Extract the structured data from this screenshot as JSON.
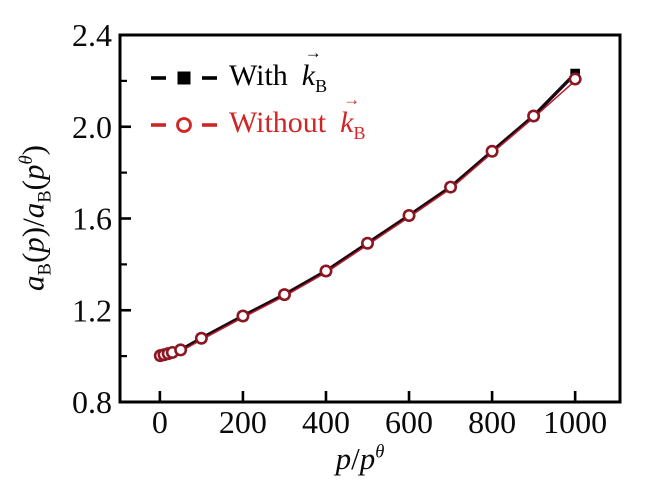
{
  "figure": {
    "background": "#ffffff"
  },
  "x_title": {
    "p1": "p",
    "slash": "/",
    "p2": "p",
    "sup": "θ"
  },
  "y_title": {
    "a1": "a",
    "sub1": "B",
    "seg1": "(",
    "p1": "p",
    "seg2": ")/",
    "a2": "a",
    "sub2": "B",
    "seg3": "(",
    "p2": "p",
    "sup": "θ",
    "seg4": ")"
  },
  "legend": {
    "arrow": "→",
    "items": [
      {
        "prefix": "With",
        "k": "k",
        "sub": "B"
      },
      {
        "prefix": "Without",
        "k": "k",
        "sub": "B"
      }
    ]
  },
  "chart_data": {
    "type": "line",
    "title": "",
    "xlabel": "p/p^θ",
    "ylabel": "a_B(p)/a_B(p^θ)",
    "xlim": [
      -96,
      1108
    ],
    "ylim": [
      0.8,
      2.4
    ],
    "xticks": [
      0,
      200,
      400,
      600,
      800,
      1000
    ],
    "xtick_labels": [
      "0",
      "200",
      "400",
      "600",
      "800",
      "1000"
    ],
    "yticks": [
      0.8,
      1.2,
      1.6,
      2.0,
      2.4
    ],
    "ytick_labels": [
      "0.8",
      "1.2",
      "1.6",
      "2.0",
      "2.4"
    ],
    "yticks_minor": [
      1.0,
      1.4,
      1.8,
      2.2
    ],
    "grid": false,
    "legend_position": "upper-left",
    "x": [
      1,
      10,
      20,
      30,
      50,
      100,
      200,
      300,
      400,
      500,
      600,
      700,
      800,
      900,
      1000
    ],
    "series": [
      {
        "name": "With k_B",
        "marker": "filled-square",
        "color": "#000000",
        "values": [
          1.002,
          1.006,
          1.011,
          1.016,
          1.027,
          1.078,
          1.175,
          1.268,
          1.371,
          1.492,
          1.613,
          1.737,
          1.893,
          2.047,
          2.232
        ]
      },
      {
        "name": "Without k_B",
        "marker": "open-circle",
        "color": "#d02525",
        "values": [
          1.002,
          1.006,
          1.011,
          1.016,
          1.027,
          1.078,
          1.175,
          1.268,
          1.371,
          1.492,
          1.613,
          1.737,
          1.893,
          2.047,
          2.208
        ]
      }
    ],
    "colors": {
      "frame": "#000000",
      "line_dark": "#1c0810",
      "red_overlay": "#b81e2e",
      "marker_edge": "#8c1722",
      "text": "#0a0a0a"
    }
  }
}
